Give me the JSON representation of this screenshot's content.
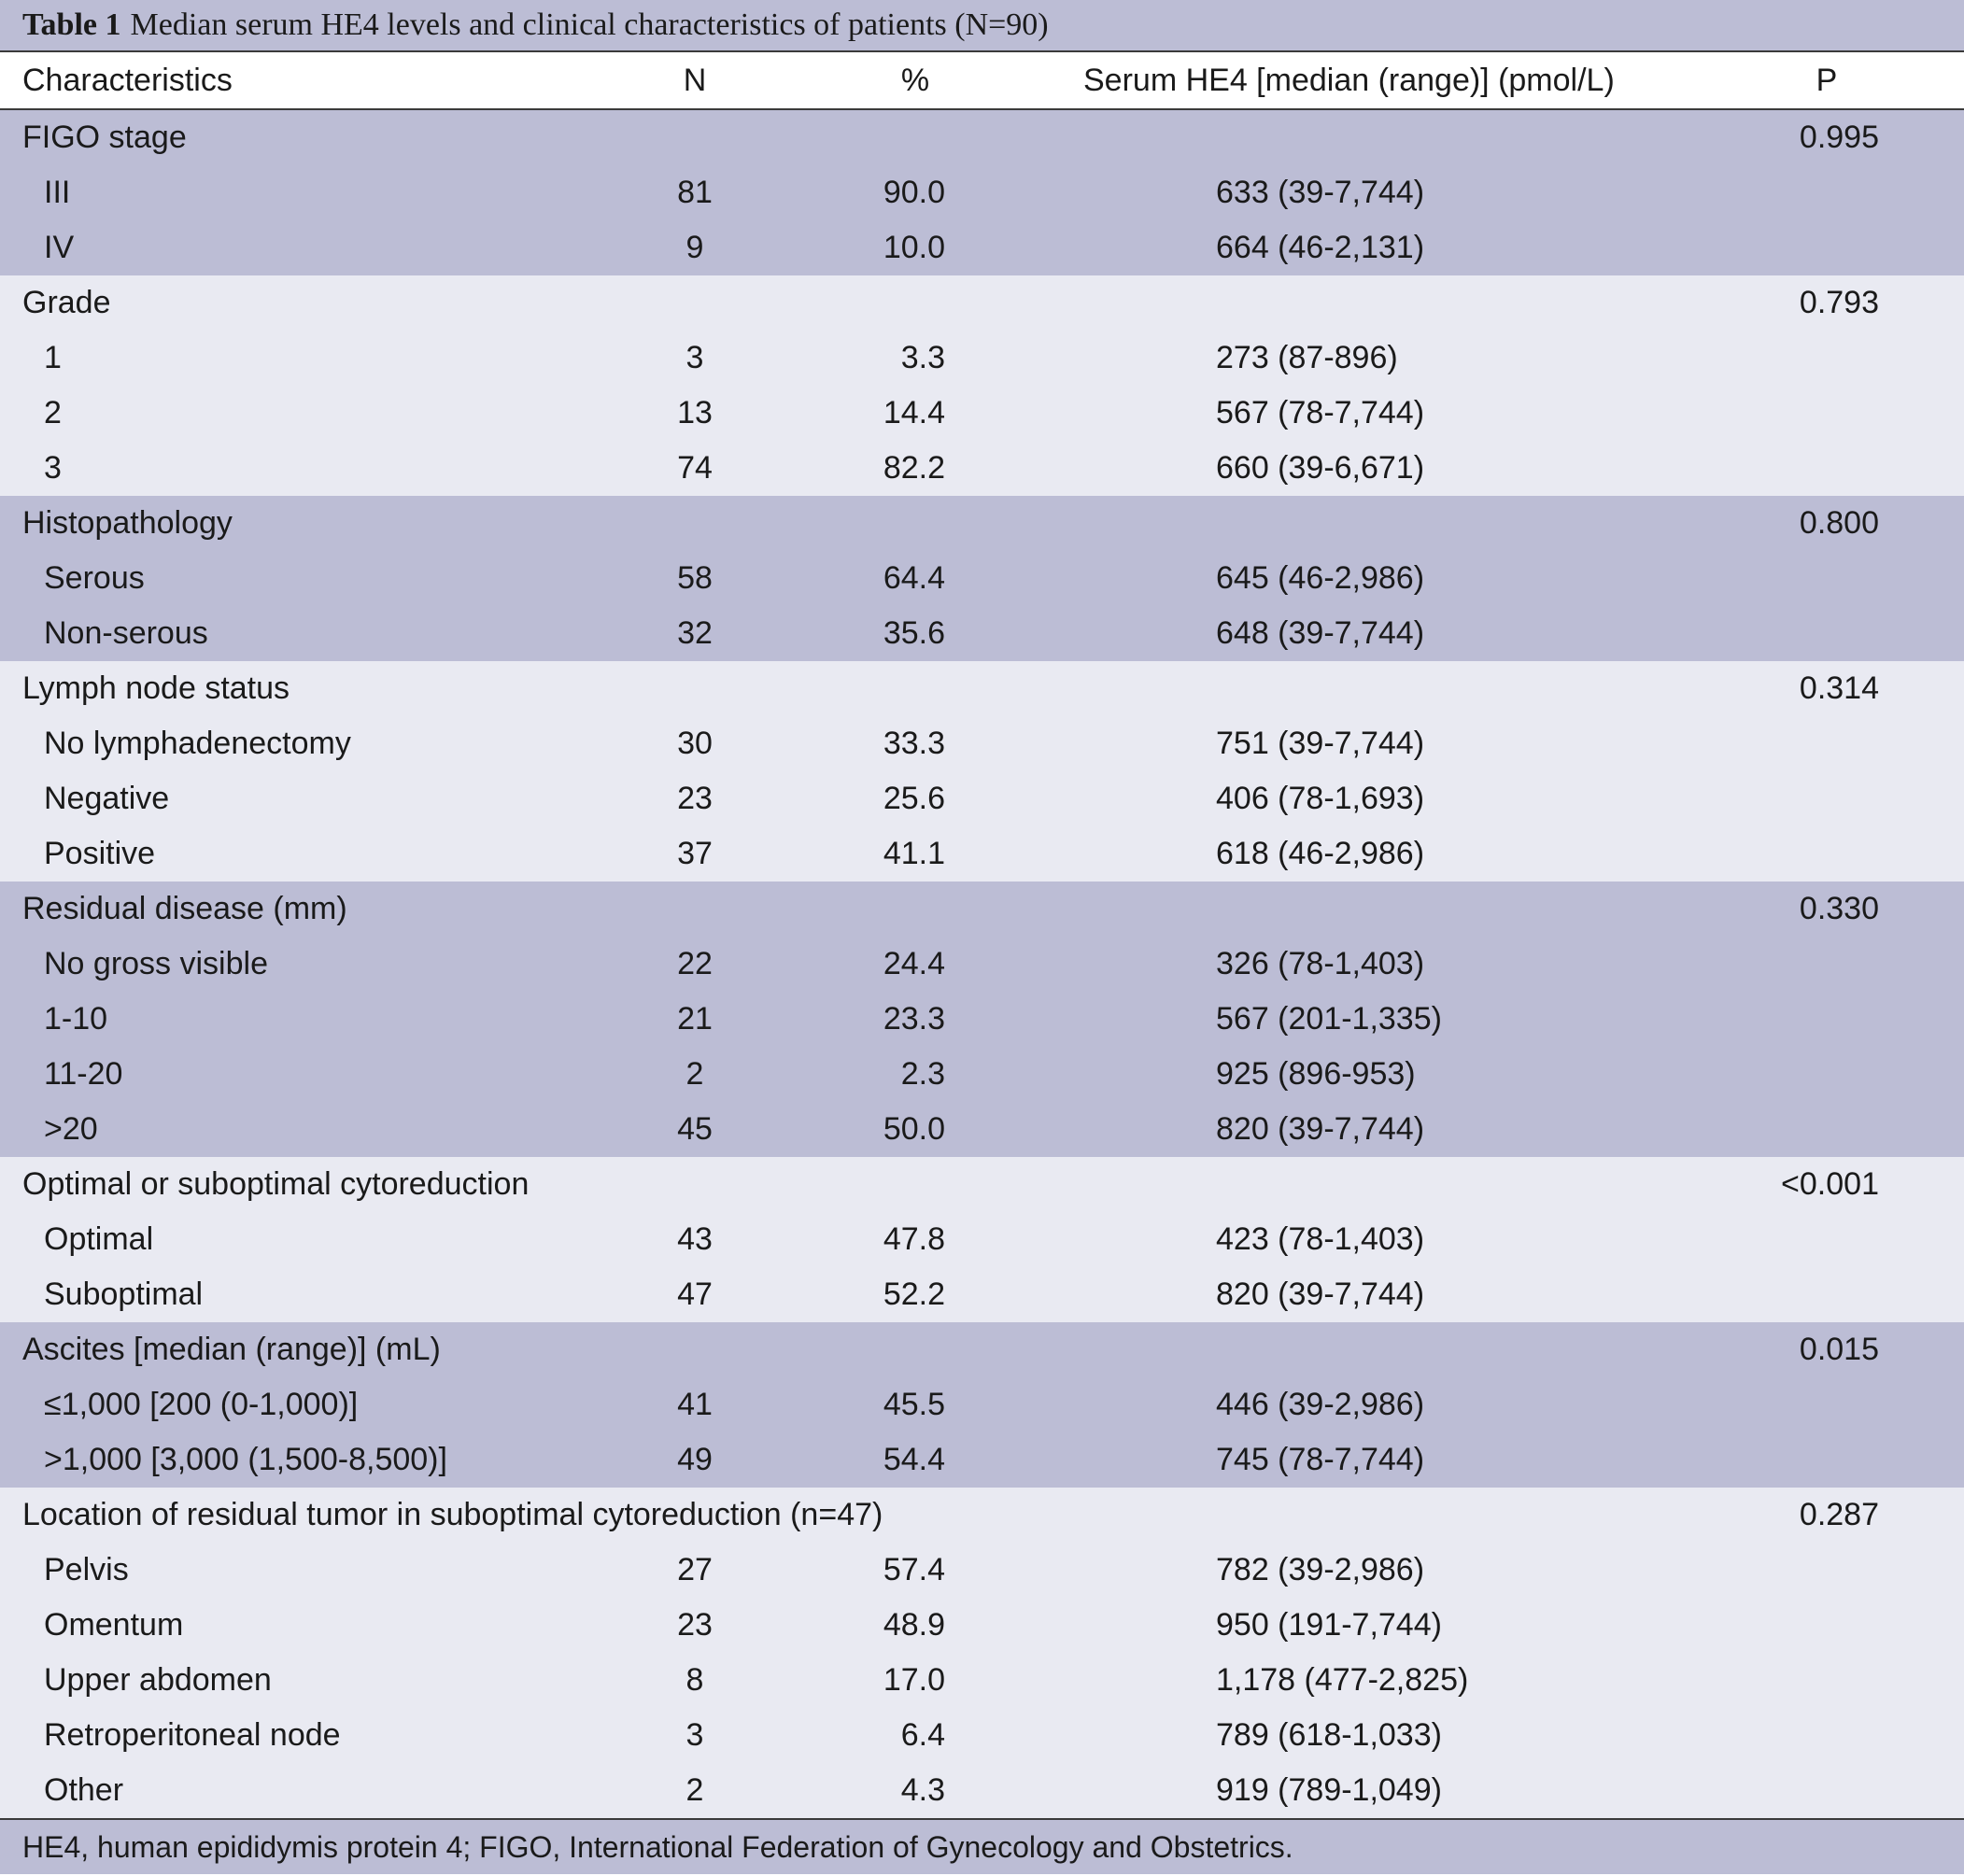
{
  "title": {
    "label": "Table 1",
    "text": "Median serum HE4 levels and clinical characteristics of patients (N=90)"
  },
  "columns": {
    "characteristics": "Characteristics",
    "n": "N",
    "pct": "%",
    "he4": "Serum HE4 [median (range)] (pmol/L)",
    "p": "P"
  },
  "groups": [
    {
      "label": "FIGO stage",
      "p": "0.995",
      "shade": "a",
      "rows": [
        {
          "label": "III",
          "n": "81",
          "pct": "90.0",
          "he4": "633 (39-7,744)"
        },
        {
          "label": "IV",
          "n": "9",
          "pct": "10.0",
          "he4": "664 (46-2,131)"
        }
      ]
    },
    {
      "label": "Grade",
      "p": "0.793",
      "shade": "b",
      "rows": [
        {
          "label": "1",
          "n": "3",
          "pct": "3.3",
          "he4": "273 (87-896)"
        },
        {
          "label": "2",
          "n": "13",
          "pct": "14.4",
          "he4": "567 (78-7,744)"
        },
        {
          "label": "3",
          "n": "74",
          "pct": "82.2",
          "he4": "660 (39-6,671)"
        }
      ]
    },
    {
      "label": "Histopathology",
      "p": "0.800",
      "shade": "a",
      "rows": [
        {
          "label": "Serous",
          "n": "58",
          "pct": "64.4",
          "he4": "645 (46-2,986)"
        },
        {
          "label": "Non-serous",
          "n": "32",
          "pct": "35.6",
          "he4": "648 (39-7,744)"
        }
      ]
    },
    {
      "label": "Lymph node status",
      "p": "0.314",
      "shade": "b",
      "rows": [
        {
          "label": "No lymphadenectomy",
          "n": "30",
          "pct": "33.3",
          "he4": "751 (39-7,744)"
        },
        {
          "label": "Negative",
          "n": "23",
          "pct": "25.6",
          "he4": "406 (78-1,693)"
        },
        {
          "label": "Positive",
          "n": "37",
          "pct": "41.1",
          "he4": "618 (46-2,986)"
        }
      ]
    },
    {
      "label": "Residual disease (mm)",
      "p": "0.330",
      "shade": "a",
      "rows": [
        {
          "label": "No gross visible",
          "n": "22",
          "pct": "24.4",
          "he4": "326 (78-1,403)"
        },
        {
          "label": "1-10",
          "n": "21",
          "pct": "23.3",
          "he4": "567 (201-1,335)"
        },
        {
          "label": "11-20",
          "n": "2",
          "pct": "2.3",
          "he4": "925 (896-953)"
        },
        {
          "label": ">20",
          "n": "45",
          "pct": "50.0",
          "he4": "820 (39-7,744)"
        }
      ]
    },
    {
      "label": "Optimal or suboptimal cytoreduction",
      "p": "<0.001",
      "shade": "b",
      "rows": [
        {
          "label": "Optimal",
          "n": "43",
          "pct": "47.8",
          "he4": "423 (78-1,403)"
        },
        {
          "label": "Suboptimal",
          "n": "47",
          "pct": "52.2",
          "he4": "820 (39-7,744)"
        }
      ]
    },
    {
      "label": "Ascites [median (range)] (mL)",
      "p": "0.015",
      "shade": "a",
      "rows": [
        {
          "label": "≤1,000 [200 (0-1,000)]",
          "n": "41",
          "pct": "45.5",
          "he4": "446 (39-2,986)"
        },
        {
          "label": ">1,000 [3,000 (1,500-8,500)]",
          "n": "49",
          "pct": "54.4",
          "he4": "745 (78-7,744)"
        }
      ]
    },
    {
      "label": "Location of residual tumor in suboptimal cytoreduction (n=47)",
      "p": "0.287",
      "shade": "b",
      "rows": [
        {
          "label": "Pelvis",
          "n": "27",
          "pct": "57.4",
          "he4": "782 (39-2,986)"
        },
        {
          "label": "Omentum",
          "n": "23",
          "pct": "48.9",
          "he4": "950 (191-7,744)"
        },
        {
          "label": "Upper abdomen",
          "n": "8",
          "pct": "17.0",
          "he4": "1,178 (477-2,825)"
        },
        {
          "label": "Retroperitoneal node",
          "n": "3",
          "pct": "6.4",
          "he4": "789 (618-1,033)"
        },
        {
          "label": "Other",
          "n": "2",
          "pct": "4.3",
          "he4": "919 (789-1,049)"
        }
      ]
    }
  ],
  "footnote": "HE4, human epididymis protein 4; FIGO, International Federation of Gynecology and Obstetrics.",
  "colors": {
    "band_dark": "#bcbdd5",
    "band_light": "#e9eaf2",
    "rule": "#3a3a3a"
  }
}
